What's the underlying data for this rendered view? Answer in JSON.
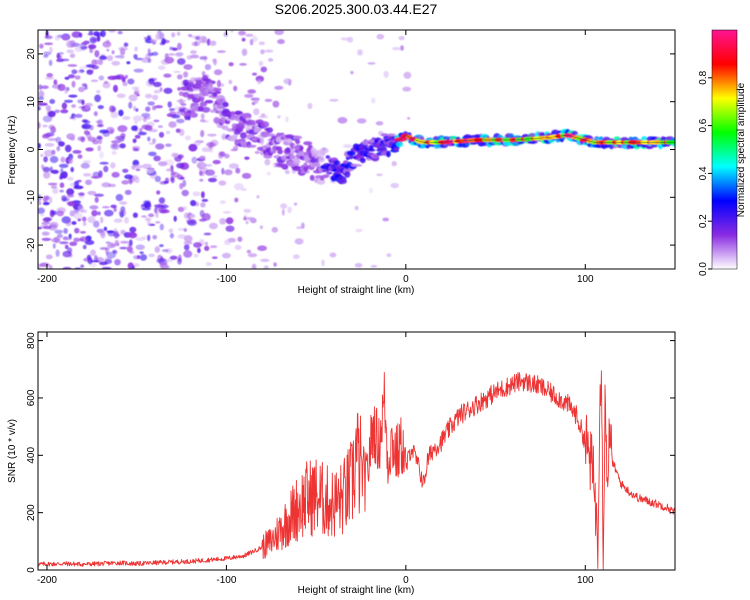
{
  "figure_title": "S206.2025.300.03.44.E27",
  "chart_data": [
    {
      "type": "heatmap",
      "title": "S206.2025.300.03.44.E27",
      "xlabel": "Height of straight line (km)",
      "ylabel": "Frequency (Hz)",
      "xlim": [
        -205,
        150
      ],
      "ylim": [
        -25,
        25
      ],
      "xticks": [
        -200,
        -100,
        0,
        100
      ],
      "yticks": [
        -20,
        -10,
        0,
        10,
        20
      ],
      "xtick_labels": [
        "-200",
        "-100",
        "0",
        "100"
      ],
      "ytick_labels": [
        "-20",
        "-10",
        "0",
        "10",
        "20"
      ],
      "colorbar": {
        "label": "Normalized spectral amplitude",
        "range": [
          0,
          1
        ],
        "ticks": [
          0,
          0.2,
          0.4,
          0.6,
          0.8
        ],
        "tick_labels": [
          "0.0",
          "0.2",
          "0.4",
          "0.6",
          "0.8"
        ],
        "colors": [
          "#ffffff",
          "#8a2be2",
          "#0000ff",
          "#00ffff",
          "#00ff00",
          "#ffff00",
          "#ff0000",
          "#ff1493"
        ]
      },
      "ridge": {
        "x": [
          -120,
          -110,
          -100,
          -90,
          -80,
          -70,
          -60,
          -50,
          -40,
          -35,
          -30,
          -20,
          -10,
          -5,
          0,
          5,
          10,
          20,
          40,
          60,
          80,
          90,
          100,
          105,
          110,
          120,
          130,
          150
        ],
        "y": [
          11,
          12,
          6,
          4,
          2,
          0,
          -1,
          -3,
          -4,
          -5,
          -2,
          0,
          1,
          1.5,
          3,
          2,
          1.5,
          1.5,
          2,
          2,
          2.5,
          3,
          2,
          1.5,
          1.5,
          1.5,
          1.5,
          1.5
        ]
      }
    },
    {
      "type": "line",
      "title": "",
      "xlabel": "Height of straight line (km)",
      "ylabel": "SNR (10 * v/v)",
      "xlim": [
        -205,
        150
      ],
      "ylim": [
        0,
        830
      ],
      "xticks": [
        -200,
        -100,
        0,
        100
      ],
      "yticks": [
        0,
        200,
        400,
        600,
        800
      ],
      "xtick_labels": [
        "-200",
        "-100",
        "0",
        "100"
      ],
      "ytick_labels": [
        "0",
        "200",
        "400",
        "600",
        "800"
      ],
      "color": "#ee3333",
      "series": [
        {
          "name": "SNR",
          "x": [
            -205,
            -190,
            -180,
            -170,
            -160,
            -150,
            -140,
            -130,
            -120,
            -110,
            -100,
            -90,
            -80,
            -75,
            -70,
            -65,
            -60,
            -55,
            -50,
            -45,
            -40,
            -35,
            -30,
            -28,
            -25,
            -22,
            -20,
            -18,
            -15,
            -12,
            -10,
            -8,
            -5,
            -2,
            0,
            3,
            6,
            10,
            12,
            15,
            20,
            25,
            30,
            40,
            50,
            60,
            65,
            70,
            75,
            80,
            85,
            90,
            95,
            100,
            103,
            105,
            107,
            108,
            109,
            110,
            111,
            112,
            113,
            115,
            120,
            125,
            130,
            135,
            140,
            145,
            150
          ],
          "y": [
            20,
            22,
            20,
            22,
            25,
            22,
            25,
            28,
            30,
            35,
            40,
            50,
            80,
            100,
            140,
            180,
            220,
            250,
            260,
            240,
            230,
            250,
            300,
            400,
            350,
            300,
            420,
            500,
            430,
            600,
            380,
            450,
            400,
            440,
            350,
            430,
            380,
            300,
            380,
            420,
            450,
            500,
            540,
            580,
            620,
            650,
            660,
            650,
            640,
            620,
            600,
            580,
            540,
            450,
            380,
            300,
            100,
            600,
            750,
            20,
            650,
            300,
            450,
            380,
            300,
            270,
            250,
            240,
            230,
            220,
            200
          ]
        }
      ]
    }
  ]
}
